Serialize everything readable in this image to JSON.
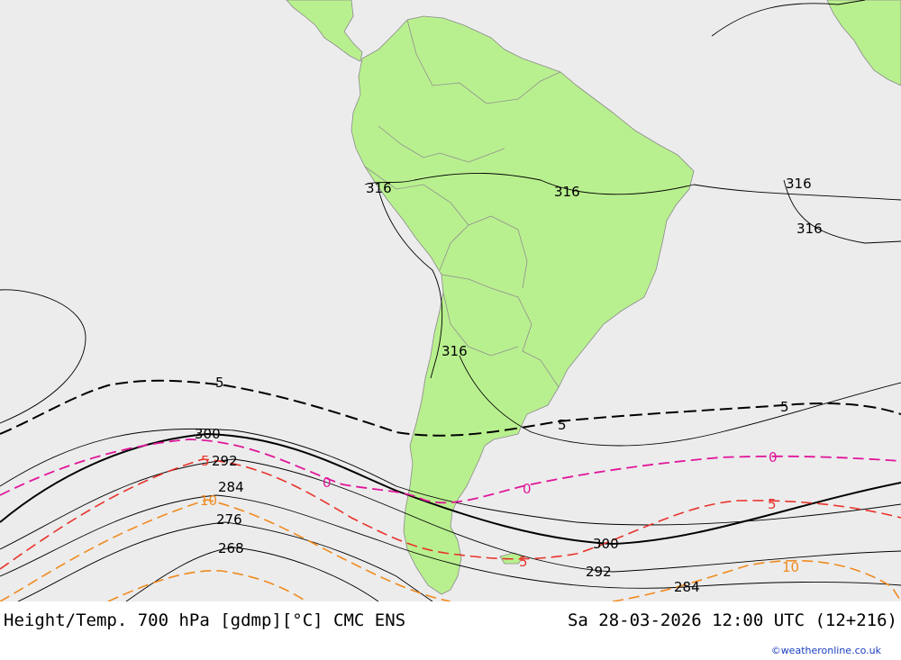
{
  "map": {
    "colors": {
      "ocean": "#ececec",
      "land": "#b9f08f",
      "border": "#9a9a9a",
      "height_contour": "#000000",
      "temp_minus5": "#000000",
      "temp_zero": "#e0169a",
      "temp_5": "#e8332b",
      "temp_10": "#f08a1e"
    },
    "height_labels": [
      "316",
      "316",
      "316",
      "316",
      "316",
      "300",
      "292",
      "284",
      "276",
      "268",
      "300",
      "292",
      "284"
    ],
    "temp_labels": [
      "5",
      "5",
      "5",
      "0",
      "0",
      "0",
      "5",
      "5",
      "5",
      "10",
      "10"
    ]
  },
  "footer": {
    "title_left": "Height/Temp. 700 hPa [gdmp][°C] CMC ENS",
    "title_right": "Sa 28-03-2026 12:00 UTC (12+216)",
    "credit": "©weatheronline.co.uk"
  }
}
